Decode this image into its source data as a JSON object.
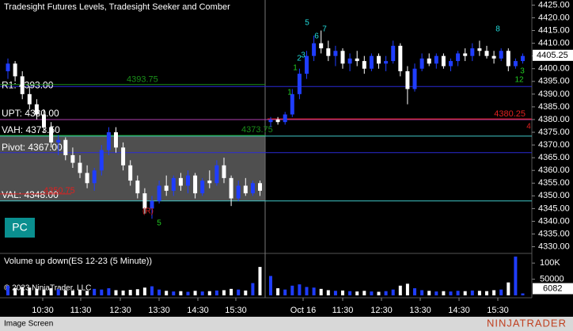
{
  "chart_data": {
    "type": "candlestick",
    "title": "Tradesight Futures Levels, Tradesight Seeker and Comber",
    "volume_title": "Volume up down(ES 12-23 (5 Minute))",
    "copyright": "© 2023 NinjaTrader, LLC",
    "footer": "Image Screen",
    "brand": "NINJATRADER",
    "badge": "PC",
    "up_color": "#1f3dff",
    "down_color": "#ffffff",
    "open": [
      4399,
      4402,
      4397,
      4390,
      4386,
      4382,
      4377,
      4371,
      4372,
      4366,
      4363,
      4359,
      4355,
      4360,
      4368,
      4375,
      4369,
      4362,
      4356,
      4351,
      4345,
      4348,
      4354,
      4352,
      4357,
      4354,
      4358,
      4351,
      4356,
      4355,
      4362,
      4357,
      4349,
      4354,
      4351,
      4355,
      4379,
      4380,
      4379,
      4382,
      4390,
      4398,
      4405,
      4410,
      4408,
      4405,
      4407,
      4402,
      4404,
      4403,
      4400,
      4405,
      4402,
      4403,
      4409,
      4399,
      4392,
      4400,
      4404,
      4402,
      4405,
      4401,
      4403,
      4406,
      4405,
      4408,
      4407,
      4405,
      4404,
      4407,
      4401,
      4403
    ],
    "high": [
      4404,
      4403,
      4399,
      4393,
      4388,
      4384,
      4379,
      4374,
      4373,
      4369,
      4366,
      4362,
      4361,
      4370,
      4377,
      4377,
      4371,
      4364,
      4358,
      4353,
      4350,
      4356,
      4358,
      4358,
      4359,
      4360,
      4359,
      4357,
      4360,
      4364,
      4365,
      4358,
      4356,
      4357,
      4356,
      4356,
      4381,
      4381,
      4383,
      4392,
      4400,
      4407,
      4413,
      4415,
      4411,
      4409,
      4408,
      4406,
      4407,
      4405,
      4406,
      4406,
      4405,
      4411,
      4410,
      4401,
      4402,
      4406,
      4406,
      4406,
      4406,
      4404,
      4407,
      4408,
      4410,
      4411,
      4409,
      4407,
      4408,
      4408,
      4404,
      4406
    ],
    "low": [
      4396,
      4395,
      4388,
      4384,
      4380,
      4375,
      4369,
      4366,
      4364,
      4361,
      4357,
      4353,
      4352,
      4358,
      4366,
      4367,
      4360,
      4354,
      4349,
      4343,
      4341,
      4347,
      4350,
      4350,
      4352,
      4351,
      4349,
      4350,
      4353,
      4354,
      4355,
      4346,
      4348,
      4350,
      4350,
      4350,
      4377,
      4378,
      4378,
      4381,
      4388,
      4396,
      4403,
      4406,
      4403,
      4401,
      4400,
      4399,
      4401,
      4398,
      4399,
      4400,
      4399,
      4402,
      4397,
      4386,
      4391,
      4399,
      4401,
      4400,
      4400,
      4399,
      4401,
      4403,
      4403,
      4405,
      4404,
      4402,
      4403,
      4399,
      4400,
      4402
    ],
    "close": [
      4402,
      4397,
      4390,
      4386,
      4382,
      4377,
      4371,
      4372,
      4366,
      4363,
      4359,
      4355,
      4360,
      4368,
      4375,
      4369,
      4362,
      4356,
      4351,
      4345,
      4348,
      4354,
      4352,
      4357,
      4354,
      4358,
      4351,
      4356,
      4355,
      4362,
      4357,
      4349,
      4354,
      4351,
      4355,
      4352,
      4380,
      4379,
      4382,
      4390,
      4398,
      4405,
      4410,
      4408,
      4405,
      4407,
      4402,
      4404,
      4403,
      4400,
      4405,
      4402,
      4403,
      4409,
      4399,
      4392,
      4400,
      4404,
      4402,
      4405,
      4401,
      4403,
      4406,
      4405,
      4408,
      4407,
      4405,
      4404,
      4407,
      4401,
      4403,
      4405
    ],
    "volume": [
      30000,
      22000,
      26000,
      24000,
      20000,
      18000,
      22000,
      19000,
      16000,
      15000,
      17000,
      14000,
      20000,
      18000,
      22000,
      16000,
      15000,
      17000,
      19000,
      24000,
      28000,
      18000,
      14000,
      12000,
      13000,
      11000,
      14000,
      12000,
      13000,
      15000,
      16000,
      20000,
      18000,
      15000,
      38000,
      88000,
      60000,
      22000,
      18000,
      30000,
      34000,
      26000,
      24000,
      20000,
      16000,
      14000,
      15000,
      13000,
      12000,
      14000,
      12000,
      11000,
      13000,
      18000,
      30000,
      36000,
      22000,
      16000,
      14000,
      12000,
      13000,
      12000,
      14000,
      13000,
      15000,
      14000,
      13000,
      16000,
      18000,
      40000,
      120000,
      6082
    ],
    "levels": [
      {
        "label": "R1: 4393.00",
        "value": 4393,
        "color": "#2b2bd6"
      },
      {
        "label": "4393.75",
        "value": 4393.75,
        "color": "#1a8f1a"
      },
      {
        "label": "UPT: 4380.00",
        "value": 4380,
        "color": "#b040b0"
      },
      {
        "label": "VAH: 4373.50",
        "value": 4373.5,
        "color": "#40c8c8"
      },
      {
        "label": "4373.75",
        "value": 4373.75,
        "color": "#1a8f1a"
      },
      {
        "label": "Pivot: 4367.00",
        "value": 4367,
        "color": "#2b2bd6"
      },
      {
        "label": "VAL: 4348.00",
        "value": 4348,
        "color": "#40c8c8"
      },
      {
        "label": "4350.75",
        "value": 4350.75,
        "color": "#e02020"
      },
      {
        "label": "4380.25",
        "value": 4380.25,
        "color": "#e02020"
      }
    ],
    "ylim": [
      4328,
      4427
    ],
    "yticks": [
      {
        "value": 4330,
        "label": "4330.00"
      },
      {
        "value": 4335,
        "label": "4335.00"
      },
      {
        "value": 4340,
        "label": "4340.00"
      },
      {
        "value": 4345,
        "label": "4345.00"
      },
      {
        "value": 4350,
        "label": "4350.00"
      },
      {
        "value": 4355,
        "label": "4355.00"
      },
      {
        "value": 4360,
        "label": "4360.00"
      },
      {
        "value": 4365,
        "label": "4365.00"
      },
      {
        "value": 4370,
        "label": "4370.00"
      },
      {
        "value": 4375,
        "label": "4375.00"
      },
      {
        "value": 4380,
        "label": "4380.00"
      },
      {
        "value": 4385,
        "label": "4385.00"
      },
      {
        "value": 4390,
        "label": "4390.00"
      },
      {
        "value": 4395,
        "label": "4395.00"
      },
      {
        "value": 4400,
        "label": "4400.00"
      },
      {
        "value": 4405,
        "label": "4405.00"
      },
      {
        "value": 4410,
        "label": "4410.00"
      },
      {
        "value": 4415,
        "label": "4415.00"
      },
      {
        "value": 4420,
        "label": "4420.00"
      },
      {
        "value": 4425,
        "label": "4425.00"
      }
    ],
    "last_price": {
      "value": 4405.25,
      "label": "4405.25"
    },
    "vlim": [
      0,
      125000
    ],
    "vticks": [
      {
        "value": 100000,
        "label": "100K"
      },
      50000
    ],
    "last_volume": 6082,
    "time_labels": [
      "10:30",
      "11:30",
      "12:30",
      "13:30",
      "14:30",
      "15:30",
      "Oct 16",
      "11:30",
      "12:30",
      "13:30",
      "14:30",
      "15:30"
    ],
    "annotations": [
      "5",
      "6",
      "7",
      "8",
      "4",
      "3",
      "2",
      "1",
      "1",
      "3",
      "12",
      "(R)",
      "5"
    ]
  }
}
